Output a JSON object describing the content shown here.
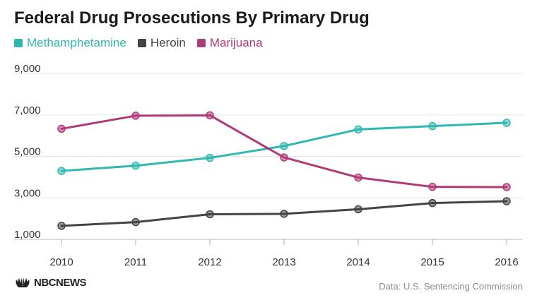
{
  "header": {
    "title": "Federal Drug Prosecutions By Primary Drug"
  },
  "legend": [
    {
      "label": "Methamphetamine",
      "color": "#2fb8b0"
    },
    {
      "label": "Heroin",
      "color": "#444444"
    },
    {
      "label": "Marijuana",
      "color": "#b03a78"
    }
  ],
  "footer": {
    "source": "Data: U.S. Sentencing Commission",
    "logo_text": "NBCNEWS"
  },
  "chart_data": {
    "type": "line",
    "title": "Federal Drug Prosecutions By Primary Drug",
    "xlabel": "",
    "ylabel": "",
    "x": [
      "2010",
      "2011",
      "2012",
      "2013",
      "2014",
      "2015",
      "2016"
    ],
    "y_ticks": [
      "9,000",
      "7,000",
      "5,000",
      "3,000",
      "1,000"
    ],
    "y_tick_values": [
      9000,
      7000,
      5000,
      3000,
      1000
    ],
    "ylim": [
      1000,
      9000
    ],
    "grid": true,
    "legend_position": "top-left",
    "series": [
      {
        "name": "Methamphetamine",
        "color": "#2fb8b0",
        "values": [
          4300,
          4550,
          4930,
          5500,
          6300,
          6460,
          6620
        ]
      },
      {
        "name": "Heroin",
        "color": "#444444",
        "values": [
          1650,
          1830,
          2210,
          2230,
          2450,
          2750,
          2840
        ]
      },
      {
        "name": "Marijuana",
        "color": "#b03a78",
        "values": [
          6330,
          6960,
          6980,
          4950,
          3980,
          3530,
          3520
        ]
      }
    ]
  }
}
